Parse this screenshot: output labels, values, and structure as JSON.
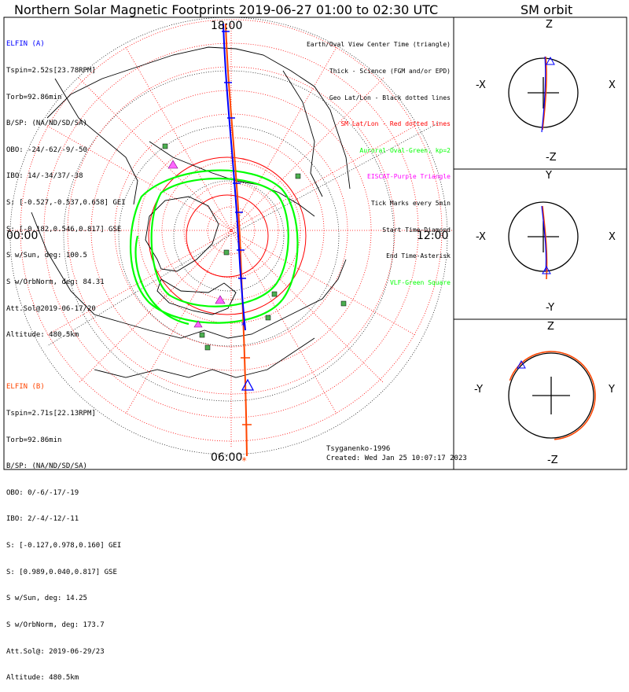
{
  "title": "Northern Solar Magnetic Footprints 2019-06-27 01:00 to 02:30 UTC",
  "orbit_title": "SM orbit",
  "mlt_labels": {
    "top": "18:00",
    "left": "00:00",
    "right": "12:00",
    "bottom": "06:00"
  },
  "elfin_a": {
    "header": "ELFIN (A)",
    "lines": [
      "Tspin=2.52s[23.78RPM]",
      "Torb=92.86min",
      "B/SP: (NA/ND/SD/SA)",
      "OBO: -24/-62/-9/-50",
      "IBO: 14/-34/37/-38",
      "S: [-0.527,-0.537,0.658] GEI",
      "S: [-0.182,0.546,0.817] GSE",
      "S w/Sun, deg: 100.5",
      "S w/OrbNorm, deg: 84.31",
      "Att.Sol@2019-06-17/20",
      "Altitude: 480.5km"
    ],
    "color": "#0000ff"
  },
  "elfin_b": {
    "header": "ELFIN (B)",
    "lines": [
      "Tspin=2.71s[22.13RPM]",
      "Torb=92.86min",
      "B/SP: (NA/ND/SD/SA)",
      "OBO: 0/-6/-17/-19",
      "IBO: 2/-4/-12/-11",
      "S: [-0.127,0.978,0.160] GEI",
      "S: [0.989,0.040,0.817] GSE",
      "S w/Sun, deg: 14.25",
      "S w/OrbNorm, deg: 173.7",
      "Att.Sol@: 2019-06-29/23",
      "Altitude: 480.5km"
    ],
    "color": "#ff4500"
  },
  "legend": [
    {
      "text": "Earth/Oval View Center Time (triangle)",
      "color": "#000000"
    },
    {
      "text": "Thick - Science (FGM and/or EPD)",
      "color": "#000000"
    },
    {
      "text": "Geo Lat/Lon - Black dotted lines",
      "color": "#000000"
    },
    {
      "text": "SM Lat/Lon - Red dotted lines",
      "color": "#ff0000"
    },
    {
      "text": "Auroral Oval-Green, kp=2",
      "color": "#00ff00"
    },
    {
      "text": "EISCAT-Purple Triangle",
      "color": "#ff00ff"
    },
    {
      "text": "Tick Marks every 5min",
      "color": "#000000"
    },
    {
      "text": "Start Time-Diamond",
      "color": "#000000"
    },
    {
      "text": "End Time-Asterisk",
      "color": "#000000"
    },
    {
      "text": "VLF-Green Square",
      "color": "#00ff00"
    }
  ],
  "credits": {
    "source": "Tsyganenko-1996",
    "created": "Created: Wed Jan 25 10:07:17 2023"
  },
  "panels": [
    {
      "up": "Z",
      "down": "-Z",
      "left": "-X",
      "right": "X"
    },
    {
      "up": "Y",
      "down": "-Y",
      "left": "-X",
      "right": "X"
    },
    {
      "up": "Z",
      "down": "-Z",
      "left": "-Y",
      "right": "Y"
    }
  ],
  "colors": {
    "elfin_a": "#0000ff",
    "elfin_b": "#ff4500",
    "oval": "#00ff00",
    "sm_grid": "#ff0000",
    "geo_grid": "#000000"
  }
}
